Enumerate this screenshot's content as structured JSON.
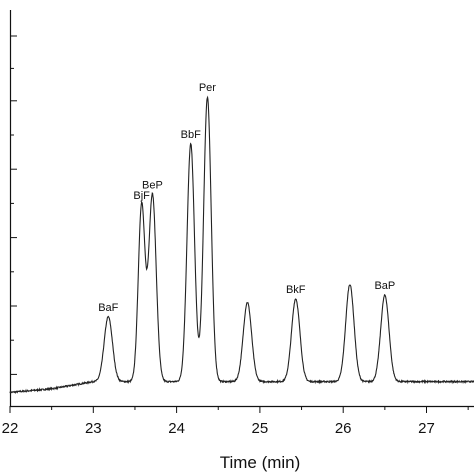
{
  "chart_data": {
    "type": "line",
    "title": "",
    "xlabel": "Time (min)",
    "ylabel": "",
    "xlim": [
      22,
      27.6
    ],
    "ylim": [
      0,
      1
    ],
    "x_ticks": [
      22,
      23,
      24,
      25,
      26,
      27
    ],
    "x_tick_labels": [
      "22",
      "23",
      "24",
      "25",
      "26",
      "27"
    ],
    "y_major_ticks": [
      0.06,
      0.25,
      0.44,
      0.63,
      0.82,
      1.0
    ],
    "y_tick_labels_shown": false,
    "grid": false,
    "line_color": "#222222",
    "baseline": {
      "x": [
        22.0,
        22.5,
        23.0,
        27.6
      ],
      "y": [
        0.01,
        0.02,
        0.04,
        0.04
      ]
    },
    "peaks": [
      {
        "label": "BaF",
        "x": 23.18,
        "y": 0.22,
        "width": 0.05
      },
      {
        "label": "BjF",
        "x": 23.58,
        "y": 0.53,
        "width": 0.04
      },
      {
        "label": "BeP",
        "x": 23.71,
        "y": 0.56,
        "width": 0.045
      },
      {
        "label": "BbF",
        "x": 24.17,
        "y": 0.7,
        "width": 0.045
      },
      {
        "label": "Per",
        "x": 24.37,
        "y": 0.83,
        "width": 0.045
      },
      {
        "label": "",
        "x": 24.85,
        "y": 0.26,
        "width": 0.05
      },
      {
        "label": "BkF",
        "x": 25.43,
        "y": 0.27,
        "width": 0.05
      },
      {
        "label": "",
        "x": 26.08,
        "y": 0.31,
        "width": 0.05
      },
      {
        "label": "BaP",
        "x": 26.5,
        "y": 0.28,
        "width": 0.05
      }
    ]
  }
}
